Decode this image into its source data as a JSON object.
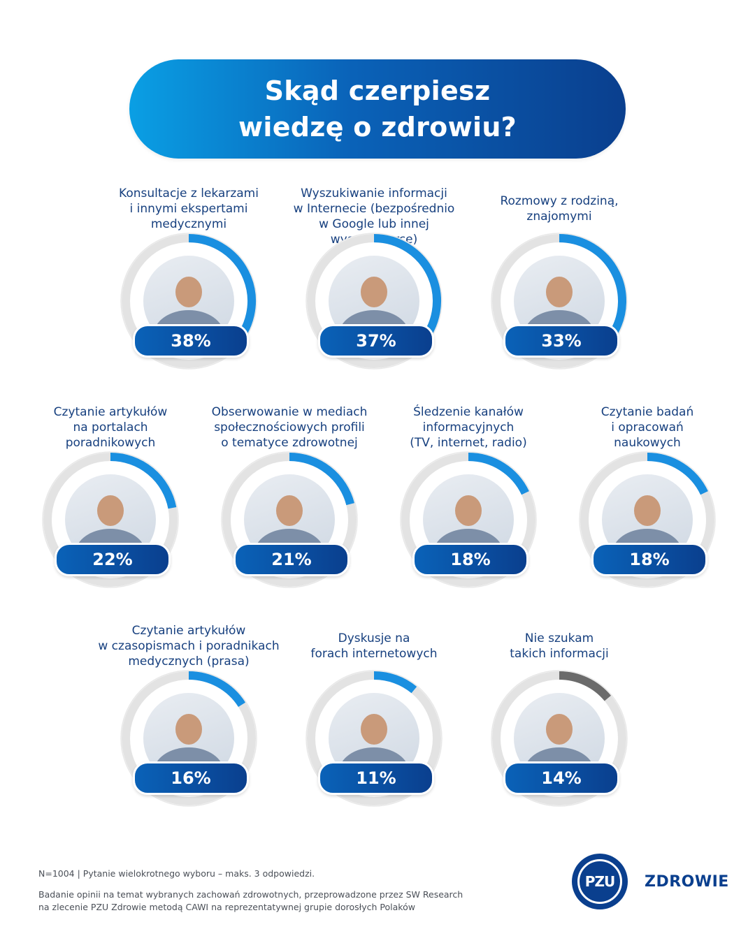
{
  "header": {
    "title": "Skąd czerpiesz\nwiedzę o zdrowiu?"
  },
  "chart_data": {
    "type": "donut-grid",
    "title": "Skąd czerpiesz wiedzę o zdrowiu?",
    "unit": "%",
    "max": 100,
    "items": [
      {
        "label": "Konsultacje z lekarzami\ni innymi ekspertami\nmedycznymi",
        "value": 38,
        "display": "38%",
        "photo": "doctor-patient-photo"
      },
      {
        "label": "Wyszukiwanie informacji\nw Internecie (bezpośrednio\nw Google lub innej wyszukiwarce)",
        "value": 37,
        "display": "37%",
        "photo": "woman-phone-photo"
      },
      {
        "label": "Rozmowy z rodziną,\nznajomymi",
        "value": 33,
        "display": "33%",
        "photo": "family-conversation-photo"
      },
      {
        "label": "Czytanie artykułów\nna portalach\nporadnikowych",
        "value": 22,
        "display": "22%",
        "photo": "phone-article-photo"
      },
      {
        "label": "Obserwowanie w mediach\nspołecznościowych profili\no tematyce zdrowotnej",
        "value": 21,
        "display": "21%",
        "photo": "man-phone-photo"
      },
      {
        "label": "Śledzenie kanałów\ninformacyjnych\n(TV, internet, radio)",
        "value": 18,
        "display": "18%",
        "photo": "woman-tv-photo"
      },
      {
        "label": "Czytanie badań\ni opracowań\nnaukowych",
        "value": 18,
        "display": "18%",
        "photo": "man-tablet-photo"
      },
      {
        "label": "Czytanie artykułów\nw czasopismach i poradnikach\nmedycznych (prasa)",
        "value": 16,
        "display": "16%",
        "photo": "newspaper-photo"
      },
      {
        "label": "Dyskusje na\nforach internetowych",
        "value": 11,
        "display": "11%",
        "photo": "woman-laptop-photo"
      },
      {
        "label": "Nie szukam\ntakich informacji",
        "value": 14,
        "display": "14%",
        "photo": "man-portrait-photo"
      }
    ],
    "colors": {
      "arc": "#1a8fe0",
      "arc_gray": "#6b6b6b",
      "track": "#e3e3e3",
      "label": "#17407f"
    }
  },
  "footer": {
    "sample_note": "N=1004  |  Pytanie wielokrotnego wyboru – maks. 3 odpowiedzi.",
    "description": "Badanie opinii na temat wybranych zachowań zdrowotnych, przeprowadzone przez SW Research\nna zlecenie PZU Zdrowie metodą CAWI na reprezentatywnej grupie dorosłych Polaków"
  },
  "logo": {
    "mark": "PZU",
    "name": "ZDROWIE"
  }
}
